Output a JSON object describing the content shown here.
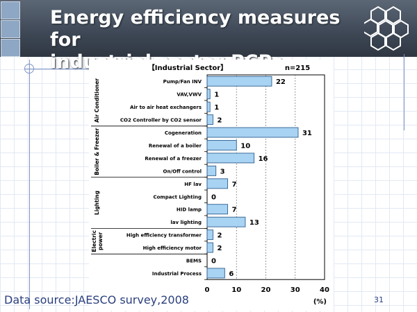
{
  "slide": {
    "title_line1": "Energy efficiency measures for",
    "title_line2": "industrial sector PCPs",
    "source": "Data source:JAESCO survey,2008",
    "page_number": "31"
  },
  "colors": {
    "bar_fill": "#a9d3f3",
    "bar_stroke": "#2d5f8f",
    "header_bg": "#434d5b",
    "source_text": "#2a3f7e"
  },
  "chart_data": {
    "type": "bar",
    "orientation": "horizontal",
    "title": "【Industrial Sector】",
    "n_label": "n=215",
    "unit_label": "(%)",
    "xlim": [
      0,
      40
    ],
    "xticks": [
      0,
      10,
      20,
      30,
      40
    ],
    "grid": "vertical dotted",
    "groups": [
      {
        "label": "Air Conditioner",
        "start": 0,
        "end": 3
      },
      {
        "label": "Boiler & Freezer",
        "start": 4,
        "end": 7
      },
      {
        "label": "Lighting",
        "start": 8,
        "end": 11
      },
      {
        "label": "Electric power",
        "start": 12,
        "end": 13
      }
    ],
    "categories": [
      "Pump/Fan INV",
      "VAV,VWV",
      "Air to air heat exchangers",
      "CO2 Controller by CO2 sensor",
      "Cogeneration",
      "Renewal of a boiler",
      "Renewal of a freezer",
      "On/Off control",
      "HF lav",
      "Compact Lighting",
      "HID lamp",
      "lav lighting",
      "High efficiency transformer",
      "High efficiency motor",
      "BEMS",
      "Industrial Process"
    ],
    "values": [
      22,
      1,
      1,
      2,
      31,
      10,
      16,
      3,
      7,
      0,
      7,
      13,
      2,
      2,
      0,
      6
    ]
  }
}
